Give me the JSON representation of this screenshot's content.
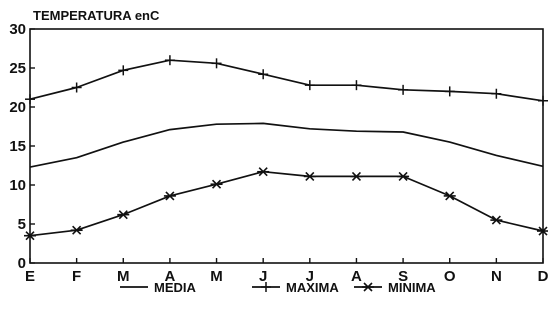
{
  "chart_data": {
    "type": "line",
    "title": "TEMPERATURA en C",
    "title_parts": {
      "main": "TEMPERATURA  en",
      "unit": "C"
    },
    "categories": [
      "E",
      "F",
      "M",
      "A",
      "M",
      "J",
      "J",
      "A",
      "S",
      "O",
      "N",
      "D"
    ],
    "yticks": [
      "0",
      "5",
      "10",
      "15",
      "20",
      "25",
      "30"
    ],
    "ylim": [
      0,
      30
    ],
    "grid": false,
    "legend_position": "bottom",
    "series": [
      {
        "name": "MEDIA",
        "marker": "none",
        "values": [
          12.3,
          13.5,
          15.5,
          17.1,
          17.8,
          17.9,
          17.2,
          16.9,
          16.8,
          15.5,
          13.8,
          12.4
        ]
      },
      {
        "name": "MAXIMA",
        "marker": "plus",
        "values": [
          21.0,
          22.5,
          24.7,
          26.0,
          25.6,
          24.2,
          22.8,
          22.8,
          22.2,
          22.0,
          21.7,
          20.8
        ]
      },
      {
        "name": "MINIMA",
        "marker": "star",
        "values": [
          3.5,
          4.2,
          6.2,
          8.6,
          10.1,
          11.7,
          11.1,
          11.1,
          11.1,
          8.6,
          5.5,
          4.1
        ]
      }
    ],
    "colors": {
      "line": "#111111",
      "background": "#ffffff"
    }
  }
}
